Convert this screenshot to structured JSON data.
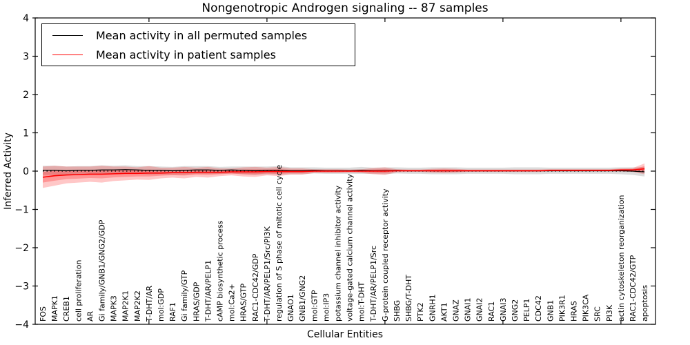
{
  "figure": {
    "title": "Nongenotropic Androgen signaling -- 87 samples",
    "xlabel": "Cellular Entities",
    "ylabel": "Inferred Activity"
  },
  "legend": {
    "position": "upper left",
    "entries": [
      {
        "label": "Mean activity in all permuted samples",
        "color": "#000000"
      },
      {
        "label": "Mean activity in patient samples",
        "color": "#ff0000"
      }
    ]
  },
  "chart_data": {
    "type": "line",
    "title": "Nongenotropic Androgen signaling -- 87 samples",
    "xlabel": "Cellular Entities",
    "ylabel": "Inferred Activity",
    "ylim": [
      -4,
      4
    ],
    "yticks": [
      {
        "value": 4,
        "label": "4"
      },
      {
        "value": 3,
        "label": "3"
      },
      {
        "value": 2,
        "label": "2"
      },
      {
        "value": 1,
        "label": "1"
      },
      {
        "value": 0,
        "label": "0"
      },
      {
        "value": -1,
        "label": "−1"
      },
      {
        "value": -2,
        "label": "−2"
      },
      {
        "value": -3,
        "label": "−3"
      },
      {
        "value": -4,
        "label": "−4"
      }
    ],
    "xticks": [
      10,
      20,
      30,
      40,
      50
    ],
    "grid": false,
    "legend_position": "upper left",
    "zero_line": {
      "style": "dotted",
      "color": "#000000",
      "value": 0
    },
    "band_inner_fraction": 0.5,
    "categories": [
      "FOS",
      "MAPK1",
      "CREB1",
      "cell proliferation",
      "AR",
      "Gi family/GNB1/GNG2/GDP",
      "MAPK3",
      "MAP2K1",
      "MAP2K2",
      "T-DHT/AR",
      "mol:GDP",
      "RAF1",
      "Gi family/GTP",
      "HRAS/GDP",
      "T-DHT/AR/PELP1",
      "cAMP biosynthetic process",
      "mol:Ca2+",
      "HRAS/GTP",
      "RAC1-CDC42/GDP",
      "T-DHT/AR/PELP1/Src/PI3K",
      "regulation of S phase of mitotic cell cycle",
      "GNAO1",
      "GNB1/GNG2",
      "mol:GTP",
      "mol:IP3",
      "potassium channel inhibitor activity",
      "voltage-gated calcium channel activity",
      "mol:T-DHT",
      "T-DHT/AR/PELP1/Src",
      "G-protein coupled receptor activity",
      "SHBG",
      "SHBG/T-DHT",
      "PTK2",
      "GNRH1",
      "AKT1",
      "GNAZ",
      "GNAI1",
      "GNAI2",
      "RAC1",
      "GNAI3",
      "GNG2",
      "PELP1",
      "CDC42",
      "GNB1",
      "PIK3R1",
      "HRAS",
      "PIK3CA",
      "SRC",
      "PI3K",
      "actin cytoskeleton reorganization",
      "RAC1-CDC42/GTP",
      "apoptosis"
    ],
    "series": [
      {
        "name": "Mean activity in all permuted samples",
        "color": "#000000",
        "band_color": "#808080",
        "values": [
          0.02,
          0.02,
          0.01,
          0.02,
          0.02,
          0.03,
          0.03,
          0.04,
          0.03,
          0.02,
          0.02,
          0.01,
          0.02,
          0.03,
          0.03,
          0.02,
          0.03,
          0.02,
          0.01,
          0.02,
          0.02,
          0.01,
          0.01,
          0.02,
          0.01,
          0.01,
          0.01,
          0.02,
          0.01,
          0.01,
          0.02,
          0.01,
          0.01,
          0.01,
          0.01,
          0.01,
          0.01,
          0.01,
          0.01,
          0.01,
          0.01,
          0.01,
          0.01,
          0.01,
          0.01,
          0.01,
          0.01,
          0.01,
          0.01,
          0.01,
          0.0,
          -0.02
        ],
        "band_halfwidth": [
          0.12,
          0.12,
          0.11,
          0.11,
          0.11,
          0.12,
          0.11,
          0.11,
          0.1,
          0.11,
          0.1,
          0.1,
          0.11,
          0.1,
          0.1,
          0.09,
          0.09,
          0.1,
          0.11,
          0.1,
          0.11,
          0.09,
          0.09,
          0.08,
          0.08,
          0.08,
          0.08,
          0.09,
          0.08,
          0.09,
          0.08,
          0.08,
          0.08,
          0.09,
          0.09,
          0.09,
          0.08,
          0.08,
          0.08,
          0.08,
          0.09,
          0.09,
          0.09,
          0.08,
          0.08,
          0.08,
          0.08,
          0.08,
          0.08,
          0.09,
          0.1,
          0.12
        ]
      },
      {
        "name": "Mean activity in patient samples",
        "color": "#ff0000",
        "band_color": "#ff0000",
        "values": [
          -0.16,
          -0.12,
          -0.1,
          -0.09,
          -0.08,
          -0.08,
          -0.07,
          -0.06,
          -0.06,
          -0.05,
          -0.05,
          -0.04,
          -0.04,
          -0.03,
          -0.03,
          -0.03,
          -0.02,
          -0.02,
          -0.02,
          -0.01,
          -0.01,
          -0.01,
          -0.01,
          0.0,
          0.0,
          0.0,
          0.0,
          0.0,
          0.0,
          0.0,
          0.01,
          0.01,
          0.01,
          0.01,
          0.01,
          0.01,
          0.01,
          0.01,
          0.01,
          0.01,
          0.01,
          0.01,
          0.01,
          0.02,
          0.02,
          0.02,
          0.02,
          0.02,
          0.02,
          0.03,
          0.03,
          0.06
        ],
        "band_halfwidth": [
          0.28,
          0.26,
          0.22,
          0.21,
          0.2,
          0.22,
          0.19,
          0.18,
          0.16,
          0.18,
          0.14,
          0.13,
          0.15,
          0.12,
          0.14,
          0.1,
          0.09,
          0.12,
          0.13,
          0.1,
          0.12,
          0.08,
          0.08,
          0.05,
          0.05,
          0.05,
          0.04,
          0.05,
          0.08,
          0.1,
          0.04,
          0.03,
          0.03,
          0.05,
          0.06,
          0.05,
          0.03,
          0.03,
          0.03,
          0.03,
          0.03,
          0.03,
          0.03,
          0.03,
          0.03,
          0.03,
          0.03,
          0.03,
          0.03,
          0.04,
          0.05,
          0.14
        ]
      }
    ]
  }
}
